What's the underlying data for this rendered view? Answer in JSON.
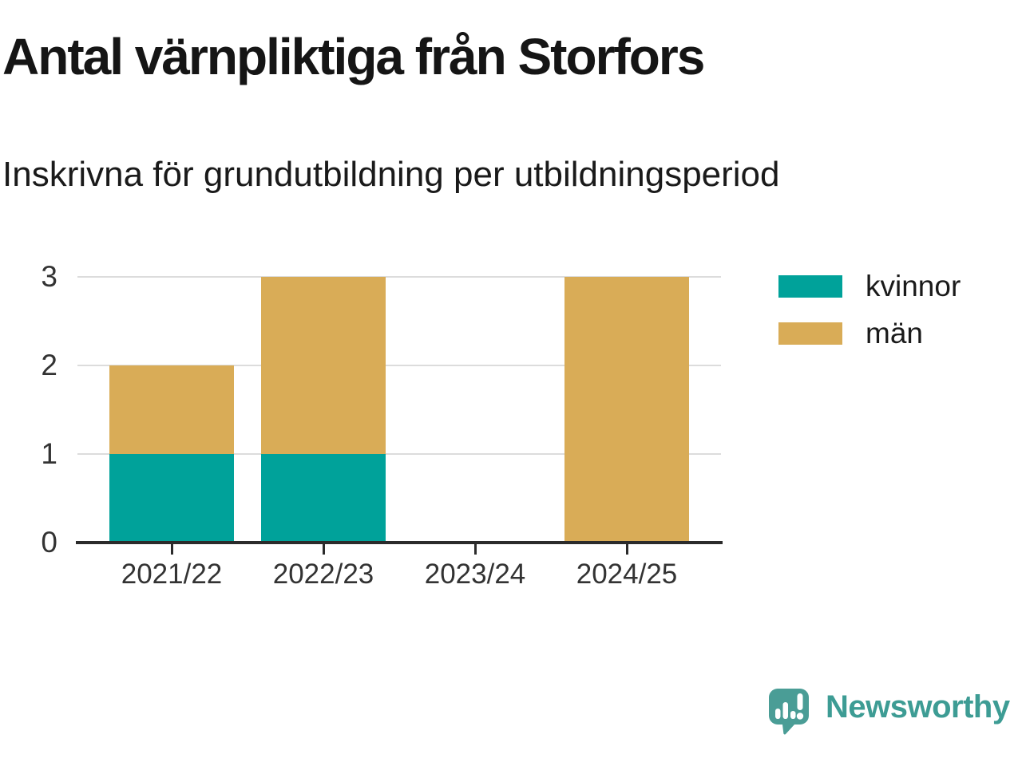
{
  "header": {
    "title": "Antal värnpliktiga från Storfors",
    "subtitle": "Inskrivna för grundutbildning per utbildningsperiod"
  },
  "chart_data": {
    "type": "bar",
    "stacked": true,
    "title": "Antal värnpliktiga från Storfors",
    "subtitle": "Inskrivna för grundutbildning per utbildningsperiod",
    "categories": [
      "2021/22",
      "2022/23",
      "2023/24",
      "2024/25"
    ],
    "series": [
      {
        "name": "kvinnor",
        "color": "#00a29a",
        "values": [
          1,
          1,
          0,
          0
        ]
      },
      {
        "name": "män",
        "color": "#d9ac57",
        "values": [
          1,
          2,
          0,
          3
        ]
      }
    ],
    "totals": [
      2,
      3,
      0,
      3
    ],
    "xlabel": "",
    "ylabel": "",
    "ylim": [
      0,
      3
    ],
    "yticks": [
      0,
      1,
      2,
      3
    ],
    "ytick_labels": [
      "0",
      "1",
      "2",
      "3"
    ],
    "grid": true,
    "legend_position": "right"
  },
  "colors": {
    "kvinnor": "#00a29a",
    "man": "#d9ac57",
    "gridline": "#dcdcdc",
    "axis": "#2b2b2b",
    "text_dark": "#1a1a1a",
    "tick_text": "#333333",
    "brand_teal": "#3d9c94"
  },
  "branding": {
    "logo_text": "Newsworthy",
    "icon": "newsworthy-bar-chart-speech-bubble-icon"
  }
}
